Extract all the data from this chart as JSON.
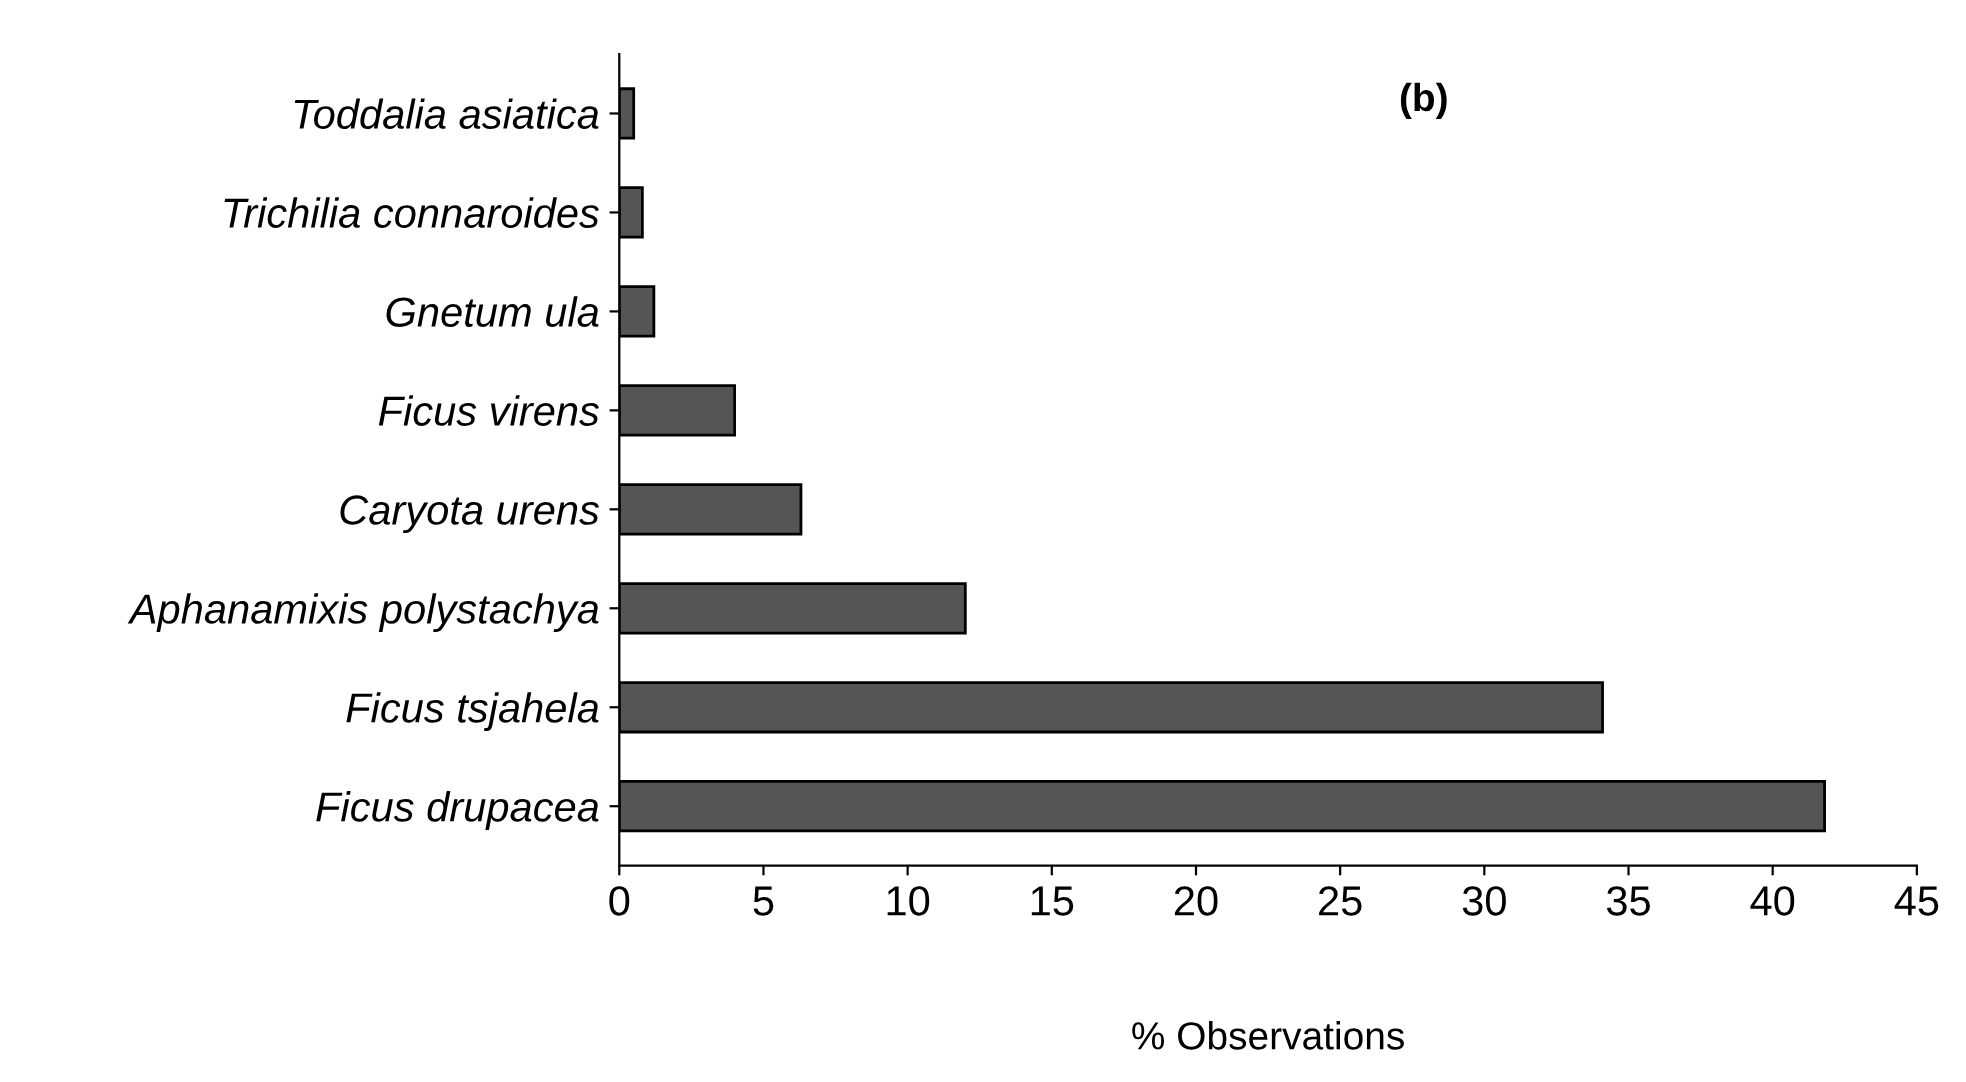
{
  "chart_data": {
    "type": "bar",
    "orientation": "horizontal",
    "categories": [
      "Toddalia asiatica",
      "Trichilia connaroides",
      "Gnetum ula",
      "Ficus virens",
      "Caryota urens",
      "Aphanamixis polystachya",
      "Ficus tsjahela",
      "Ficus drupacea"
    ],
    "values": [
      0.5,
      0.8,
      1.2,
      4.0,
      6.3,
      12.0,
      34.1,
      41.8
    ],
    "color": "#555555",
    "xlim": [
      0,
      45
    ],
    "xticks": [
      0,
      5,
      10,
      15,
      20,
      25,
      30,
      35,
      40,
      45
    ],
    "xlabel": "% Observations",
    "annotations": [
      "(b)"
    ],
    "grid": false
  }
}
